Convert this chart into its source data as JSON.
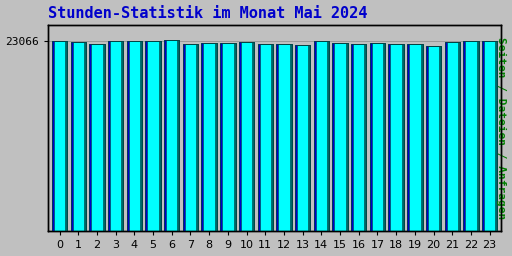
{
  "title": "Stunden-Statistik im Monat Mai 2024",
  "ylabel": "Seiten / Dateien / Anfragen",
  "xlabel_ticks": [
    "0",
    "1",
    "2",
    "3",
    "4",
    "5",
    "6",
    "7",
    "8",
    "9",
    "10",
    "11",
    "12",
    "13",
    "14",
    "15",
    "16",
    "17",
    "18",
    "19",
    "20",
    "21",
    "22",
    "23"
  ],
  "ytick_label": "23066",
  "ytick_value": 23066,
  "bar_values": [
    23066,
    22900,
    22700,
    22950,
    23050,
    23050,
    23100,
    22700,
    22750,
    22800,
    22850,
    22700,
    22600,
    22500,
    23000,
    22750,
    22700,
    22750,
    22600,
    22650,
    22450,
    22900,
    23000,
    22950
  ],
  "bar_color_fill": "#00FFFF",
  "bar_color_edge_dark": "#004040",
  "bar_color_blue": "#0000CC",
  "bar_color_teal": "#006666",
  "background_color": "#C0C0C0",
  "plot_bg_color": "#C0C0C0",
  "title_color": "#0000CC",
  "ylabel_color": "#008000",
  "tick_color": "#000000",
  "title_fontsize": 11,
  "ylabel_fontsize": 8,
  "tick_fontsize": 8,
  "ymin": 0,
  "ymax": 25000
}
